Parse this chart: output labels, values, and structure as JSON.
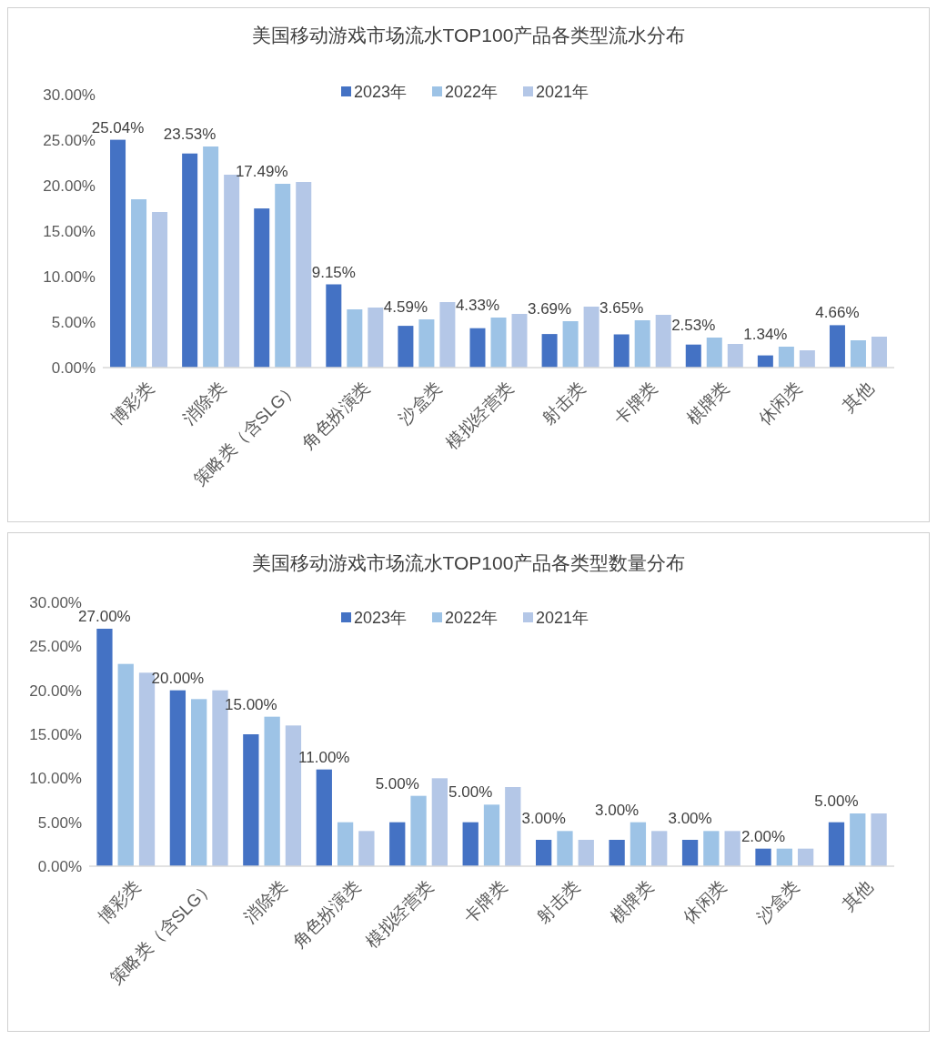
{
  "chart_data": [
    {
      "type": "bar",
      "title": "美国移动游戏市场流水TOP100产品各类型流水分布",
      "categories": [
        "博彩类",
        "消除类",
        "策略类（含SLG）",
        "角色扮演类",
        "沙盒类",
        "模拟经营类",
        "射击类",
        "卡牌类",
        "棋牌类",
        "休闲类",
        "其他"
      ],
      "series": [
        {
          "name": "2023年",
          "color": "#4472c4",
          "values": [
            25.04,
            23.53,
            17.49,
            9.15,
            4.59,
            4.33,
            3.69,
            3.65,
            2.53,
            1.34,
            4.66
          ],
          "value_labels": [
            "25.04%",
            "23.53%",
            "17.49%",
            "9.15%",
            "4.59%",
            "4.33%",
            "3.69%",
            "3.65%",
            "2.53%",
            "1.34%",
            "4.66%"
          ]
        },
        {
          "name": "2022年",
          "color": "#9dc3e6",
          "values": [
            18.5,
            24.3,
            20.2,
            6.4,
            5.3,
            5.5,
            5.1,
            5.2,
            3.3,
            2.3,
            3.0
          ]
        },
        {
          "name": "2021年",
          "color": "#b4c7e7",
          "values": [
            17.1,
            21.2,
            20.4,
            6.6,
            7.2,
            5.9,
            6.7,
            5.8,
            2.6,
            1.9,
            3.4
          ]
        }
      ],
      "ylim": [
        0,
        30
      ],
      "yticks": [
        {
          "value": 0,
          "label": "0.00%"
        },
        {
          "value": 5,
          "label": "5.00%"
        },
        {
          "value": 10,
          "label": "10.00%"
        },
        {
          "value": 15,
          "label": "15.00%"
        },
        {
          "value": 20,
          "label": "20.00%"
        },
        {
          "value": 25,
          "label": "25.00%"
        },
        {
          "value": 30,
          "label": "30.00%"
        }
      ],
      "legend": "top",
      "grid": false
    },
    {
      "type": "bar",
      "title": "美国移动游戏市场流水TOP100产品各类型数量分布",
      "categories": [
        "博彩类",
        "策略类（含SLG）",
        "消除类",
        "角色扮演类",
        "模拟经营类",
        "卡牌类",
        "射击类",
        "棋牌类",
        "休闲类",
        "沙盒类",
        "其他"
      ],
      "series": [
        {
          "name": "2023年",
          "color": "#4472c4",
          "values": [
            27,
            20,
            15,
            11,
            5,
            5,
            3,
            3,
            3,
            2,
            5
          ],
          "value_labels": [
            "27.00%",
            "20.00%",
            "15.00%",
            "11.00%",
            "5.00%",
            "5.00%",
            "3.00%",
            "3.00%",
            "3.00%",
            "2.00%",
            "5.00%"
          ]
        },
        {
          "name": "2022年",
          "color": "#9dc3e6",
          "values": [
            23,
            19,
            17,
            5,
            8,
            7,
            4,
            5,
            4,
            2,
            6
          ]
        },
        {
          "name": "2021年",
          "color": "#b4c7e7",
          "values": [
            22,
            20,
            16,
            4,
            10,
            9,
            3,
            4,
            4,
            2,
            6
          ]
        }
      ],
      "ylim": [
        0,
        30
      ],
      "yticks": [
        {
          "value": 0,
          "label": "0.00%"
        },
        {
          "value": 5,
          "label": "5.00%"
        },
        {
          "value": 10,
          "label": "10.00%"
        },
        {
          "value": 15,
          "label": "15.00%"
        },
        {
          "value": 20,
          "label": "20.00%"
        },
        {
          "value": 25,
          "label": "25.00%"
        },
        {
          "value": 30,
          "label": "30.00%"
        }
      ],
      "legend": "top",
      "grid": false
    }
  ]
}
